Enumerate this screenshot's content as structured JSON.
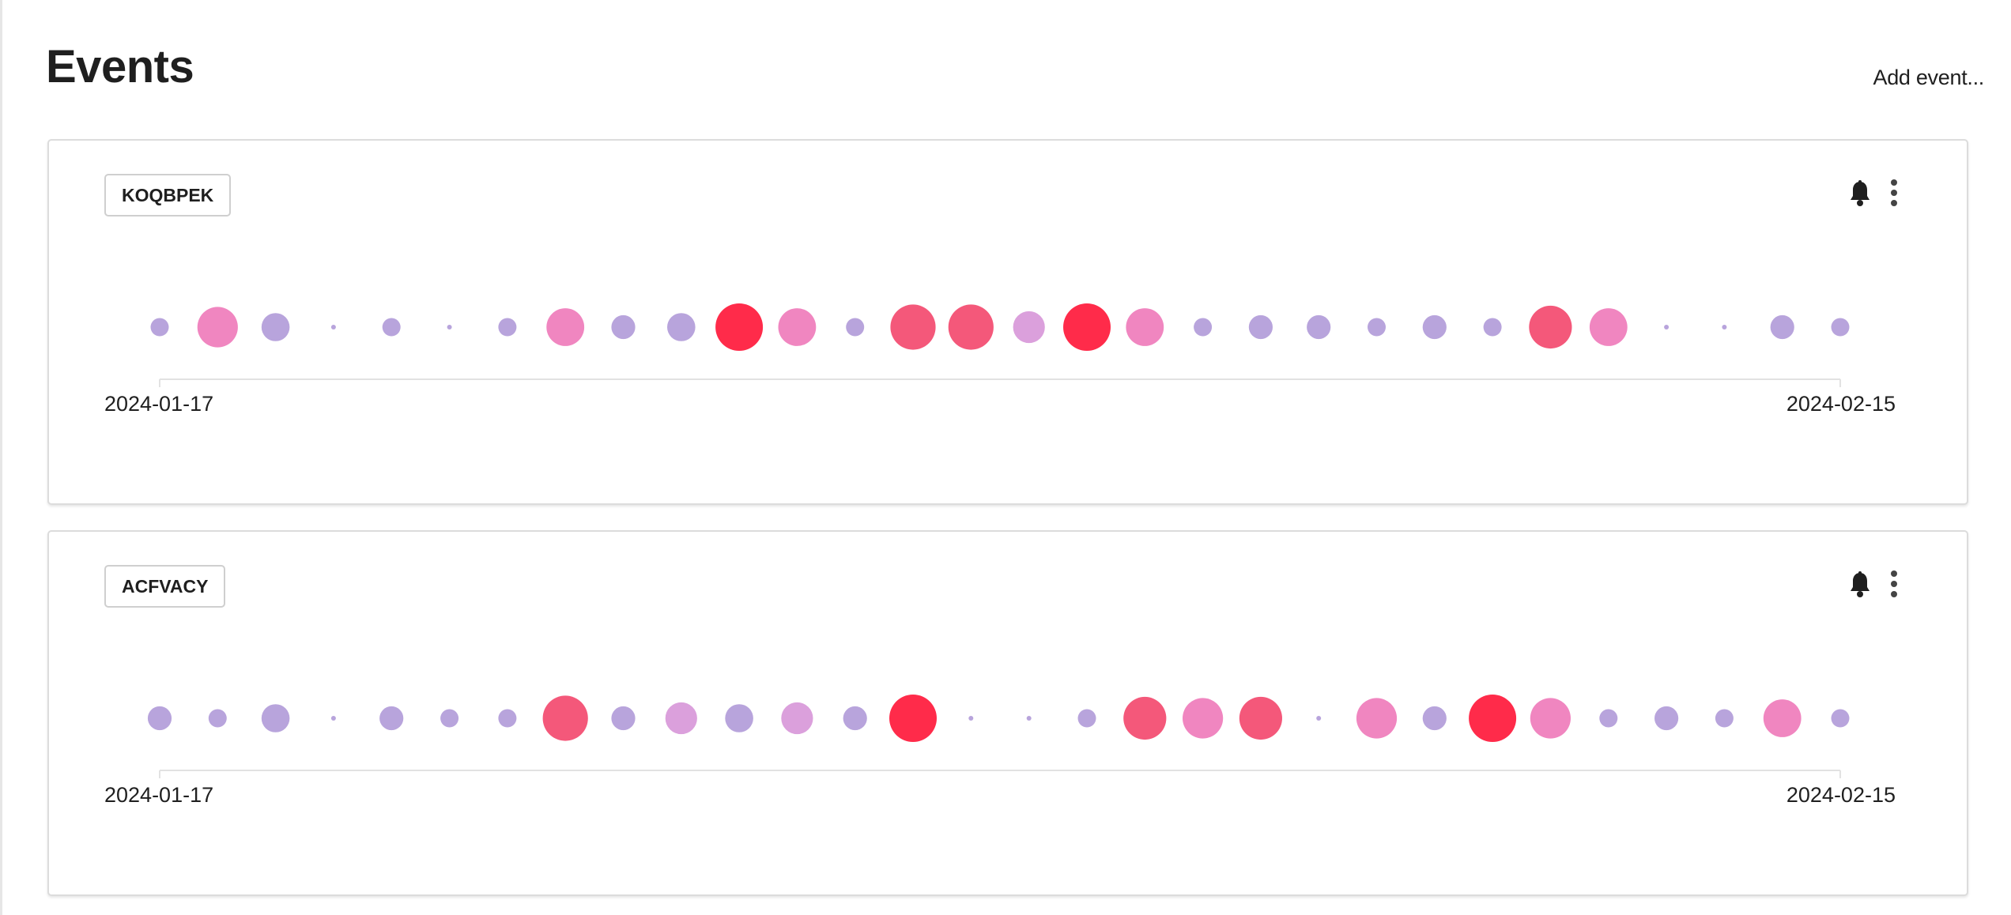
{
  "page": {
    "title": "Events",
    "add_event_label": "Add event..."
  },
  "icons": {
    "notify": "bell-icon",
    "menu": "more-vertical-icon"
  },
  "colors": {
    "low": "#b8a4dc",
    "mid_low": "#dba0dc",
    "mid": "#f086c0",
    "high": "#f4587a",
    "max": "#ff2b4a"
  },
  "events": [
    {
      "tag": "KOQBPEK",
      "start_date": "2024-01-17",
      "end_date": "2024-02-15",
      "chart_data": {
        "type": "scatter",
        "x_range": [
          "2024-01-17",
          "2024-02-15"
        ],
        "x": [
          "2024-01-17",
          "2024-01-18",
          "2024-01-19",
          "2024-01-20",
          "2024-01-21",
          "2024-01-22",
          "2024-01-23",
          "2024-01-24",
          "2024-01-25",
          "2024-01-26",
          "2024-01-27",
          "2024-01-28",
          "2024-01-29",
          "2024-01-30",
          "2024-01-31",
          "2024-02-01",
          "2024-02-02",
          "2024-02-03",
          "2024-02-04",
          "2024-02-05",
          "2024-02-06",
          "2024-02-07",
          "2024-02-08",
          "2024-02-09",
          "2024-02-10",
          "2024-02-11",
          "2024-02-12",
          "2024-02-13",
          "2024-02-14",
          "2024-02-15"
        ],
        "values": [
          1,
          7,
          3,
          0,
          1,
          0,
          1,
          6,
          2,
          3,
          10,
          6,
          1,
          9,
          9,
          4,
          10,
          6,
          1,
          2,
          2,
          1,
          2,
          1,
          8,
          6,
          0,
          0,
          2,
          1
        ],
        "max_value": 10,
        "grid": false,
        "legend": "none"
      }
    },
    {
      "tag": "ACFVACY",
      "start_date": "2024-01-17",
      "end_date": "2024-02-15",
      "chart_data": {
        "type": "scatter",
        "x_range": [
          "2024-01-17",
          "2024-02-15"
        ],
        "x": [
          "2024-01-17",
          "2024-01-18",
          "2024-01-19",
          "2024-01-20",
          "2024-01-21",
          "2024-01-22",
          "2024-01-23",
          "2024-01-24",
          "2024-01-25",
          "2024-01-26",
          "2024-01-27",
          "2024-01-28",
          "2024-01-29",
          "2024-01-30",
          "2024-01-31",
          "2024-02-01",
          "2024-02-02",
          "2024-02-03",
          "2024-02-04",
          "2024-02-05",
          "2024-02-06",
          "2024-02-07",
          "2024-02-08",
          "2024-02-09",
          "2024-02-10",
          "2024-02-11",
          "2024-02-12",
          "2024-02-13",
          "2024-02-14",
          "2024-02-15"
        ],
        "values": [
          2,
          1,
          3,
          0,
          2,
          1,
          1,
          9,
          2,
          4,
          3,
          4,
          2,
          10,
          0,
          0,
          1,
          8,
          7,
          8,
          0,
          7,
          2,
          10,
          7,
          1,
          2,
          1,
          6,
          1
        ],
        "max_value": 10,
        "grid": false,
        "legend": "none"
      }
    }
  ]
}
